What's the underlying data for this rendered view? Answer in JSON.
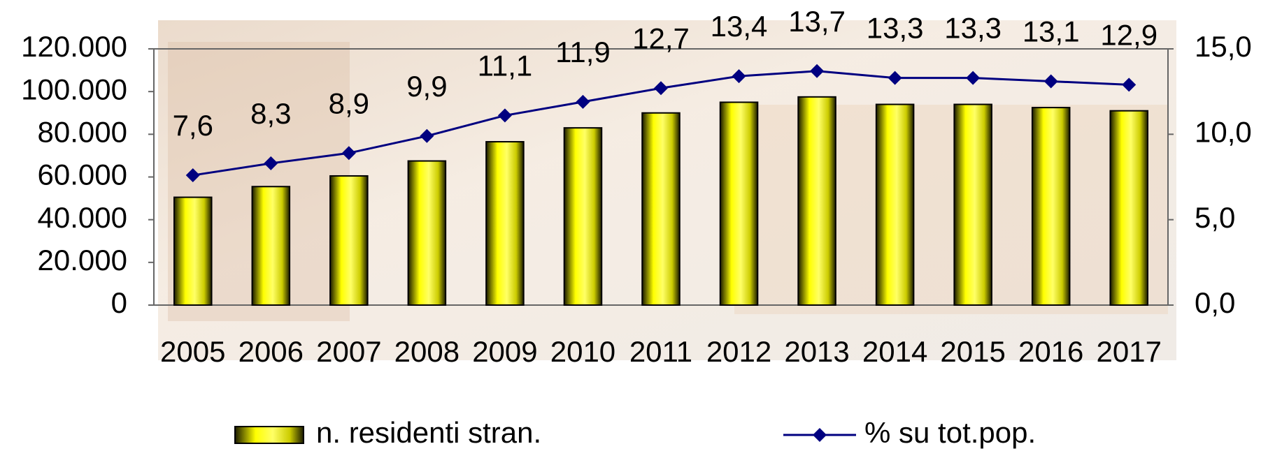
{
  "chart_data": {
    "type": "bar",
    "categories": [
      "2005",
      "2006",
      "2007",
      "2008",
      "2009",
      "2010",
      "2011",
      "2012",
      "2013",
      "2014",
      "2015",
      "2016",
      "2017"
    ],
    "series": [
      {
        "name": "n. residenti stran.",
        "type": "bar",
        "color": "#ffff00",
        "values": [
          50500,
          55500,
          60500,
          67500,
          76500,
          83000,
          90000,
          95000,
          97500,
          94000,
          94000,
          92500,
          91000
        ]
      },
      {
        "name": "% su tot.pop.",
        "type": "line",
        "axis": "y2",
        "color": "#000080",
        "values": [
          7.6,
          8.3,
          8.9,
          9.9,
          11.1,
          11.9,
          12.7,
          13.4,
          13.7,
          13.3,
          13.3,
          13.1,
          12.9
        ],
        "value_labels": [
          "7,6",
          "8,3",
          "8,9",
          "9,9",
          "11,1",
          "11,9",
          "12,7",
          "13,4",
          "13,7",
          "13,3",
          "13,3",
          "13,1",
          "12,9"
        ]
      }
    ],
    "ylim": [
      0,
      120000
    ],
    "yticks": [
      {
        "value": 0,
        "label": "0"
      },
      {
        "value": 20000,
        "label": "20.000"
      },
      {
        "value": 40000,
        "label": "40.000"
      },
      {
        "value": 60000,
        "label": "60.000"
      },
      {
        "value": 80000,
        "label": "80.000"
      },
      {
        "value": 100000,
        "label": "100.000"
      },
      {
        "value": 120000,
        "label": "120.000"
      }
    ],
    "y2lim": [
      0,
      15
    ],
    "y2ticks": [
      {
        "value": 0,
        "label": "0,0"
      },
      {
        "value": 5,
        "label": "5,0"
      },
      {
        "value": 10,
        "label": "10,0"
      },
      {
        "value": 15,
        "label": "15,0"
      }
    ],
    "legend": "bottom"
  }
}
